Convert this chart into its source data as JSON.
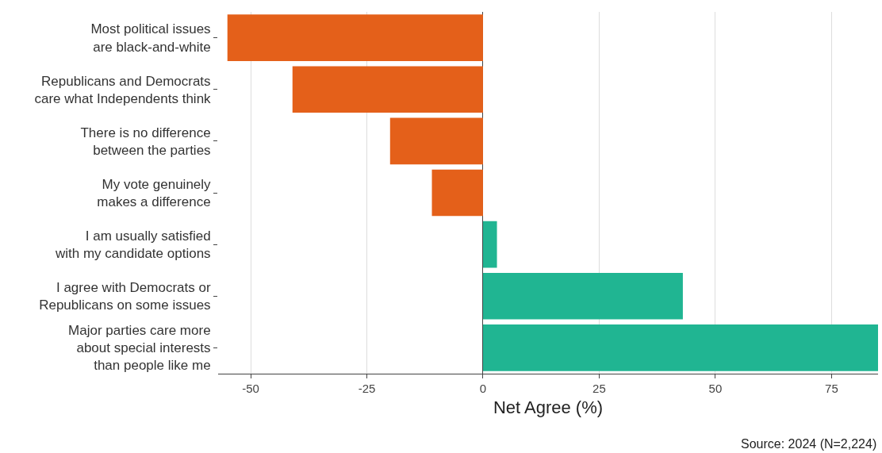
{
  "chart_data": {
    "type": "bar",
    "orientation": "horizontal",
    "categories": [
      "Most political issues\nare black-and-white",
      "Republicans and Democrats\ncare what Independents think",
      "There is no difference\nbetween the parties",
      "My vote genuinely\nmakes a difference",
      "I am usually satisfied\nwith my candidate options",
      "I agree with Democrats or\nRepublicans on some issues",
      "Major parties care more\nabout special interests\nthan people like me"
    ],
    "values": [
      -55,
      -41,
      -20,
      -11,
      3,
      43,
      85
    ],
    "colors": [
      "#e4601a",
      "#e4601a",
      "#e4601a",
      "#e4601a",
      "#20b592",
      "#20b592",
      "#20b592"
    ],
    "xlim": [
      -57,
      85
    ],
    "xticks": [
      -50,
      -25,
      0,
      25,
      50,
      75
    ],
    "xlabel": "Net Agree (%)",
    "grid": "x",
    "annotations": [
      "Source: 2024 (N=2,224)"
    ]
  }
}
